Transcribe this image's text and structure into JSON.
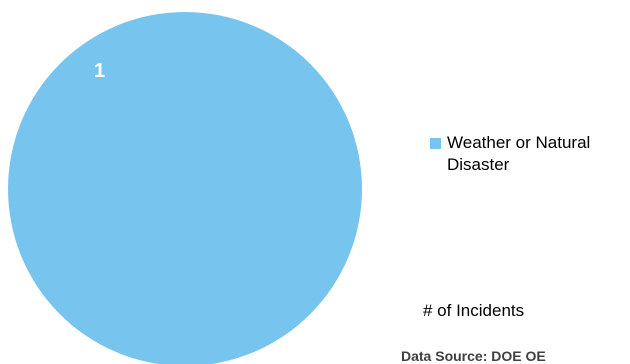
{
  "chart_data": {
    "type": "pie",
    "categories": [
      "Weather or Natural Disaster"
    ],
    "values": [
      1
    ],
    "data_labels": [
      "1"
    ],
    "colors": [
      "#77c4ee"
    ],
    "legend": {
      "placement": "right",
      "entries": [
        "Weather or Natural Disaster"
      ]
    },
    "metric_label": "# of Incidents",
    "source_text": "Data Source: DOE OE"
  }
}
